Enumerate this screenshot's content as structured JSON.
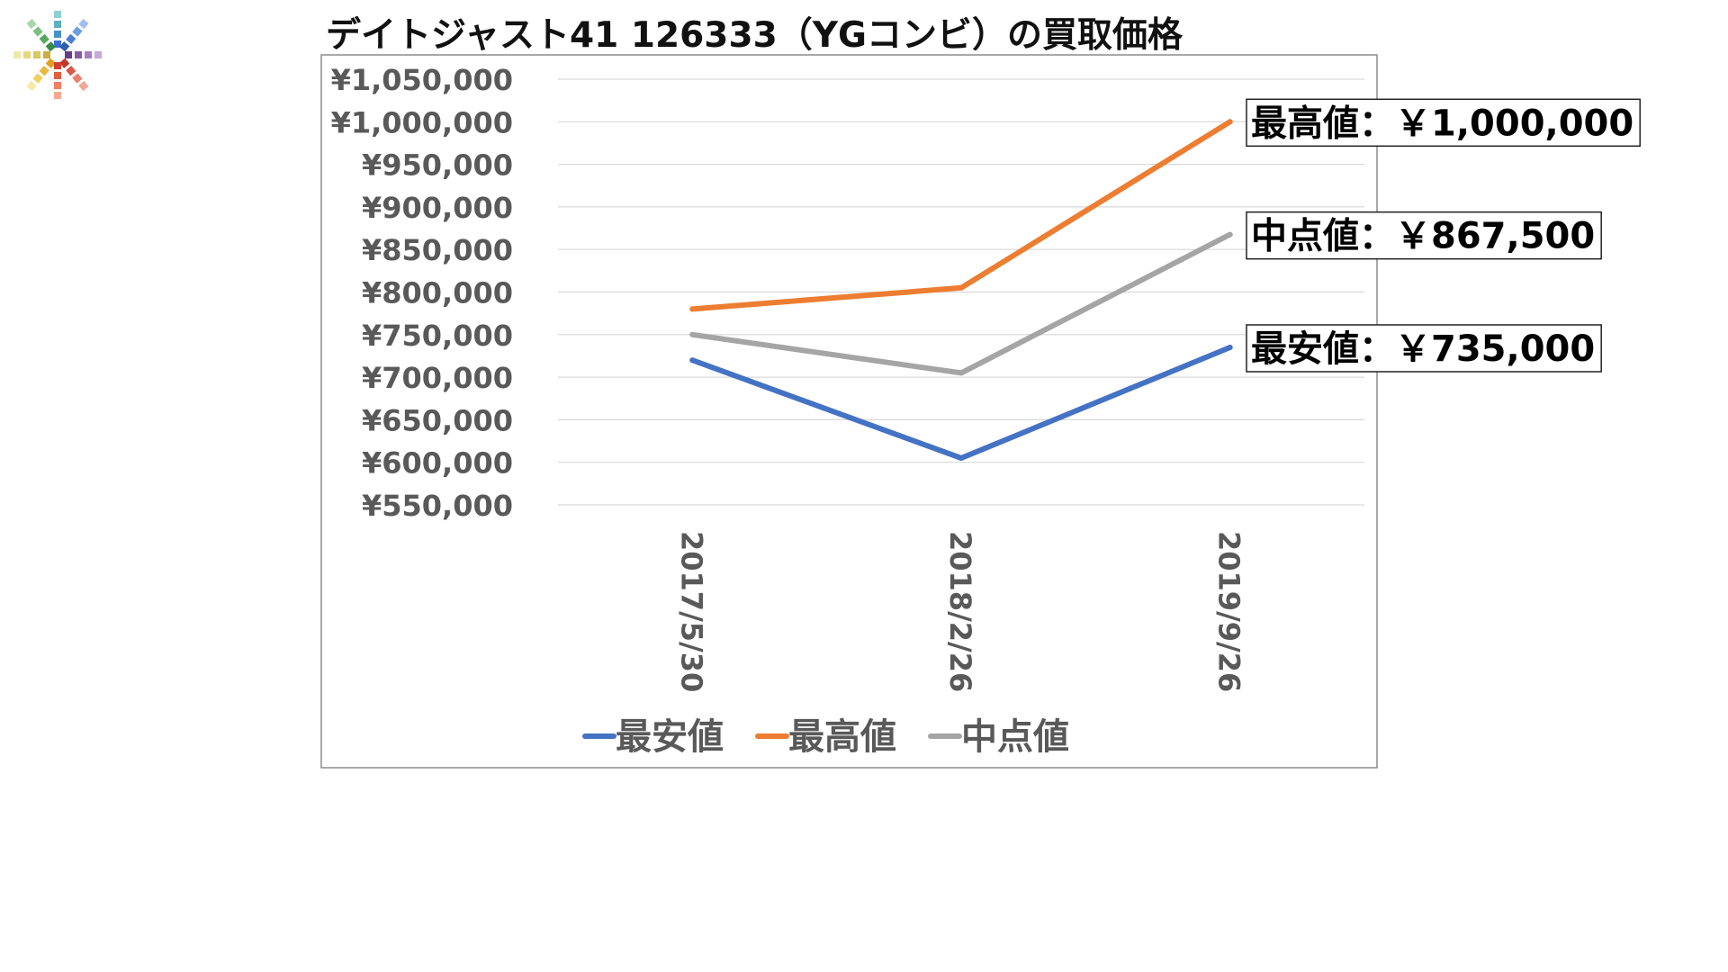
{
  "title": "デイトジャスト41 126333（YGコンビ）の買取価格",
  "colors": {
    "low": "#4472C4",
    "high": "#ED7D31",
    "mid": "#A5A5A5",
    "grid": "#D9D9D9",
    "tick": "#595959"
  },
  "icons": {
    "logo": "colorful-burst-logo-icon"
  },
  "chart_data": {
    "type": "line",
    "title": "デイトジャスト41 126333（YGコンビ）の買取価格",
    "xlabel": "",
    "ylabel": "",
    "categories": [
      "2017/5/30",
      "2018/2/26",
      "2019/9/26"
    ],
    "series": [
      {
        "name": "最安値",
        "color": "#4472C4",
        "values": [
          720000,
          605000,
          735000
        ]
      },
      {
        "name": "最高値",
        "color": "#ED7D31",
        "values": [
          780000,
          805000,
          1000000
        ]
      },
      {
        "name": "中点値",
        "color": "#A5A5A5",
        "values": [
          750000,
          705000,
          867500
        ]
      }
    ],
    "ylim": [
      550000,
      1050000
    ],
    "ytick_values": [
      550000,
      600000,
      650000,
      700000,
      750000,
      800000,
      850000,
      900000,
      950000,
      1000000,
      1050000
    ],
    "yticks": [
      "¥550,000",
      "¥600,000",
      "¥650,000",
      "¥700,000",
      "¥750,000",
      "¥800,000",
      "¥850,000",
      "¥900,000",
      "¥950,000",
      "¥1,000,000",
      "¥1,050,000"
    ],
    "grid": true,
    "legend": "bottom",
    "annotations": [
      {
        "series": "最高値",
        "text": "最高値：￥1,000,000"
      },
      {
        "series": "中点値",
        "text": "中点値：￥867,500"
      },
      {
        "series": "最安値",
        "text": "最安値：￥735,000"
      }
    ]
  }
}
